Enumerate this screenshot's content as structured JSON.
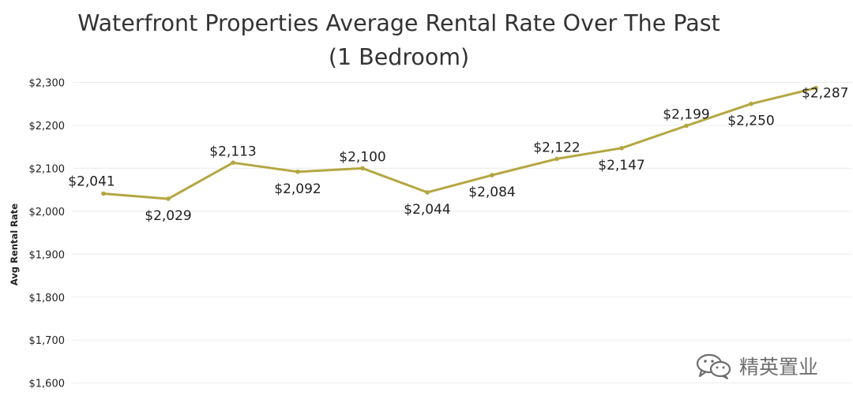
{
  "chart_data": {
    "type": "line",
    "title_line1": "Waterfront Properties Average Rental Rate Over The Past",
    "title_line2": "(1 Bedroom)",
    "xlabel": "",
    "ylabel": "Avg Rental Rate",
    "ylim": [
      1500,
      2300
    ],
    "yticks": [
      1600,
      1700,
      1800,
      1900,
      2000,
      2100,
      2200,
      2300
    ],
    "ytick_labels": [
      "$1,600",
      "$1,700",
      "$1,800",
      "$1,900",
      "$2,000",
      "$2,100",
      "$2,200",
      "$2,300"
    ],
    "grid": true,
    "line_color": "#b5a642",
    "series": [
      {
        "values": [
          2041,
          2029,
          2113,
          2092,
          2100,
          2044,
          2084,
          2122,
          2147,
          2199,
          2250,
          2287
        ],
        "labels": [
          "$2,041",
          "$2,029",
          "$2,113",
          "$2,092",
          "$2,100",
          "$2,044",
          "$2,084",
          "$2,122",
          "$2,147",
          "$2,199",
          "$2,250",
          "$2,287"
        ]
      }
    ]
  },
  "watermark": {
    "icon": "wechat-icon",
    "text": "精英置业"
  }
}
